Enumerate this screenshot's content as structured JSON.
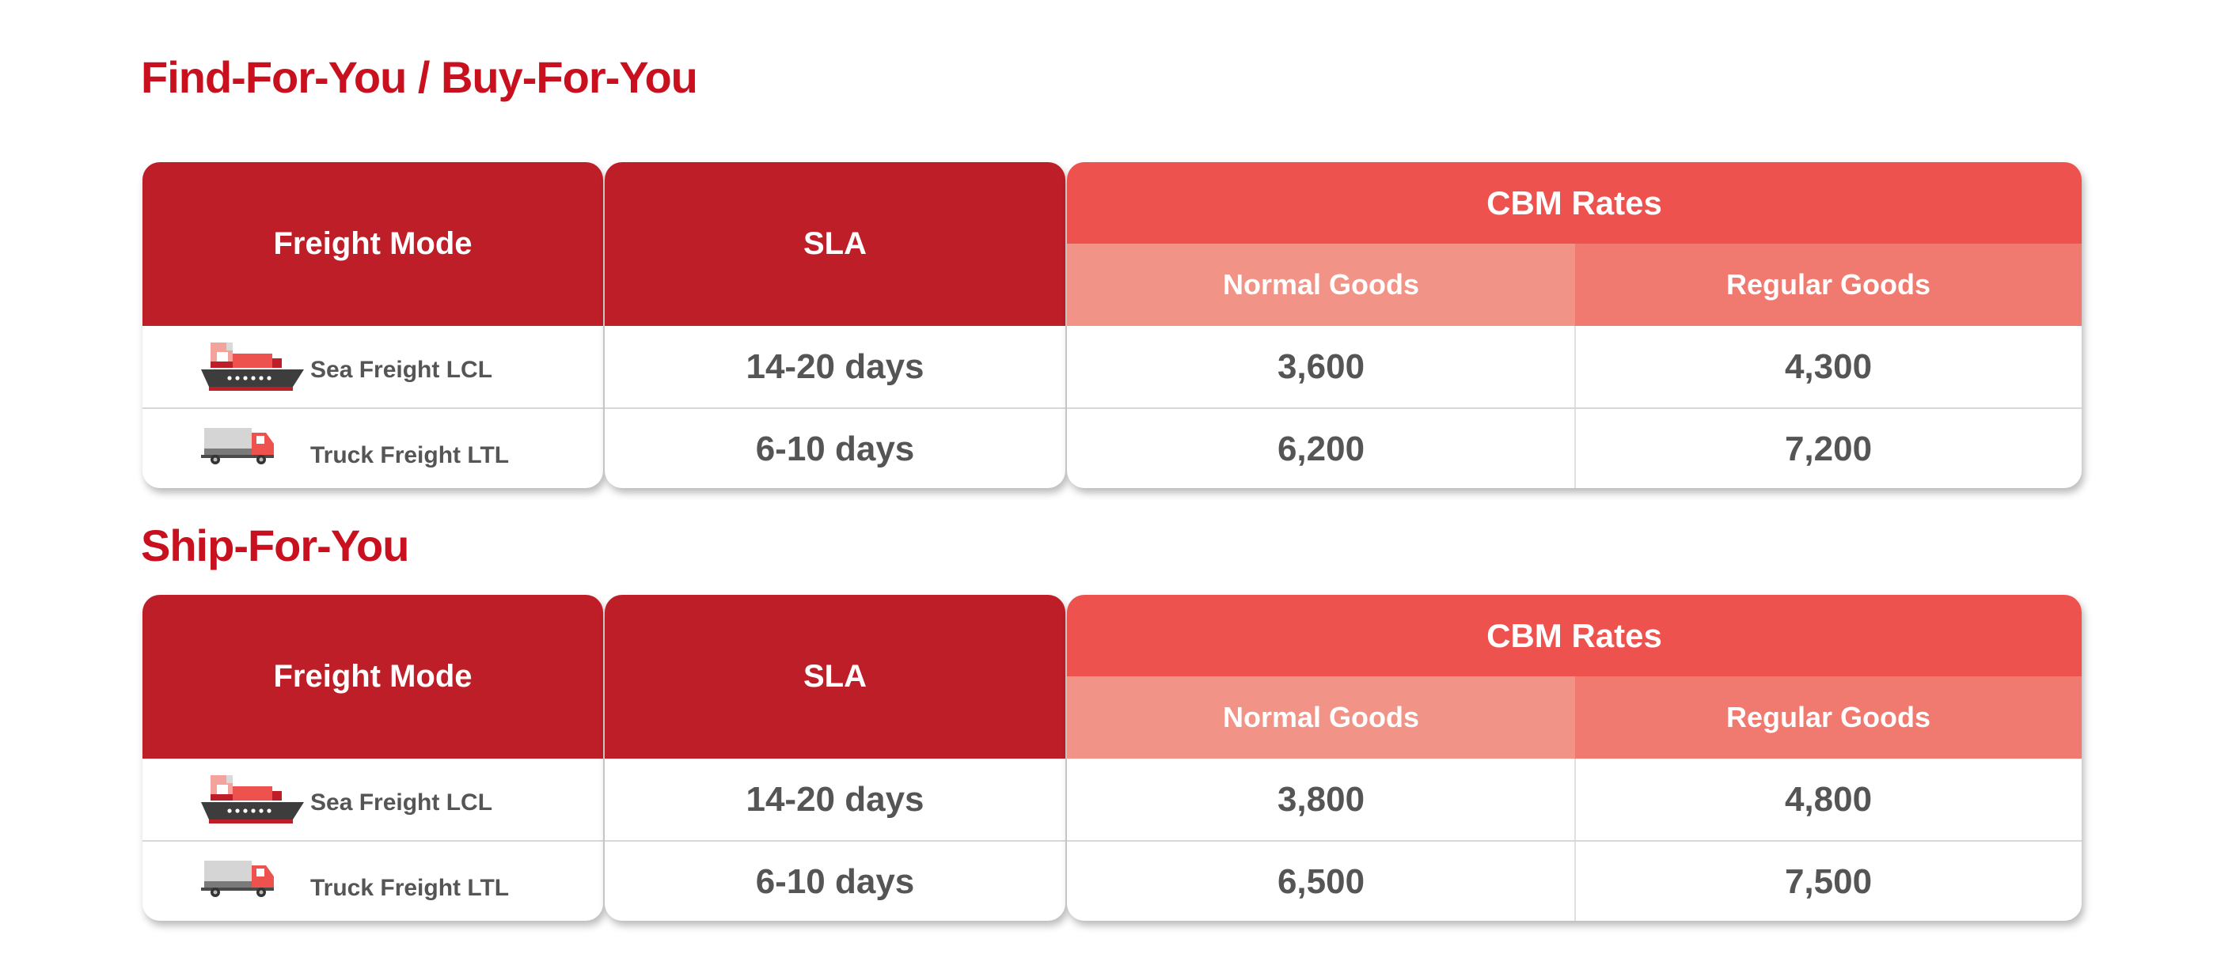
{
  "sections": [
    {
      "title": "Find-For-You / Buy-For-You",
      "headers": {
        "freight_mode": "Freight Mode",
        "sla": "SLA",
        "cbm_rates": "CBM Rates",
        "normal_goods": "Normal Goods",
        "regular_goods": "Regular Goods"
      },
      "rows": [
        {
          "icon": "ship-icon",
          "mode": "Sea Freight LCL",
          "sla": "14-20 days",
          "normal": "3,600",
          "regular": "4,300"
        },
        {
          "icon": "truck-icon",
          "mode": "Truck Freight LTL",
          "sla": "6-10 days",
          "normal": "6,200",
          "regular": "7,200"
        }
      ]
    },
    {
      "title": "Ship-For-You",
      "headers": {
        "freight_mode": "Freight Mode",
        "sla": "SLA",
        "cbm_rates": "CBM Rates",
        "normal_goods": "Normal Goods",
        "regular_goods": "Regular Goods"
      },
      "rows": [
        {
          "icon": "ship-icon",
          "mode": "Sea Freight LCL",
          "sla": "14-20 days",
          "normal": "3,800",
          "regular": "4,800"
        },
        {
          "icon": "truck-icon",
          "mode": "Truck Freight LTL",
          "sla": "6-10 days",
          "normal": "6,500",
          "regular": "7,500"
        }
      ]
    }
  ],
  "colors": {
    "title_red": "#c8101e",
    "header_dark_red": "#be1e27",
    "cbm_red": "#ee524f",
    "normal_goods_pink": "#f19487",
    "regular_goods_salmon": "#f07a6f",
    "value_gray": "#555555"
  }
}
